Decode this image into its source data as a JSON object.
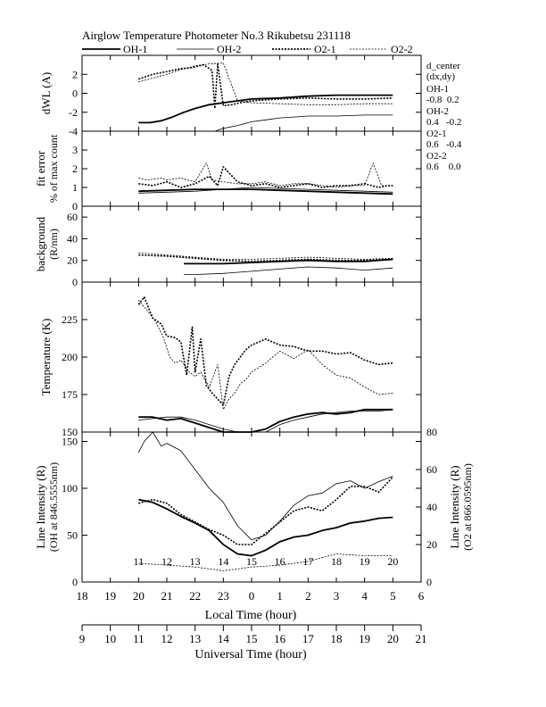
{
  "header": {
    "title": "Airglow Temperature Photometer No.3  Rikubetsu    231118",
    "legend": [
      {
        "label": "OH-1",
        "style": "solid-thick"
      },
      {
        "label": "OH-2",
        "style": "solid-thin"
      },
      {
        "label": "O2-1",
        "style": "dotted-thick"
      },
      {
        "label": "O2-2",
        "style": "dotted-thin"
      }
    ]
  },
  "center_info": {
    "title_lines": [
      "d_center",
      "(dx,dy)"
    ],
    "entries": [
      {
        "name": "OH-1",
        "value": "-0.8  0.2"
      },
      {
        "name": "OH-2",
        "value": "0.4   -0.2"
      },
      {
        "name": "O2-1",
        "value": "0.6   -0.4"
      },
      {
        "name": "O2-2",
        "value": "0.6    0.0"
      }
    ]
  },
  "axes": {
    "local_label": "Local Time (hour)",
    "local_ticks": [
      "18",
      "19",
      "20",
      "21",
      "22",
      "23",
      "0",
      "1",
      "2",
      "3",
      "4",
      "5",
      "6"
    ],
    "ut_label": "Universal Time (hour)",
    "ut_ticks": [
      "9",
      "10",
      "11",
      "12",
      "13",
      "14",
      "15",
      "16",
      "17",
      "18",
      "19",
      "20",
      "21"
    ],
    "ut_inline_ticks": [
      "11",
      "12",
      "13",
      "14",
      "15",
      "16",
      "17",
      "18",
      "19",
      "20"
    ]
  },
  "chart_data": [
    {
      "type": "line",
      "panel": "dwl",
      "ylabel": "dWL (A)",
      "ylim": [
        -4,
        4
      ],
      "yticks": [
        "-4",
        "-2",
        "0",
        "2"
      ],
      "xlim": [
        18,
        30
      ],
      "series": [
        {
          "name": "OH-1",
          "x": [
            20,
            20.4,
            20.8,
            21.2,
            21.6,
            22,
            22.5,
            23,
            23.5,
            24,
            25,
            26,
            27,
            28,
            29
          ],
          "values": [
            -3.1,
            -3.1,
            -2.9,
            -2.5,
            -2.0,
            -1.6,
            -1.2,
            -1.0,
            -0.8,
            -0.6,
            -0.5,
            -0.3,
            -0.2,
            -0.2,
            -0.2
          ]
        },
        {
          "name": "OH-2",
          "x": [
            22.7,
            23,
            23.5,
            24,
            24.5,
            25,
            25.5,
            26,
            27,
            28,
            29
          ],
          "values": [
            -4,
            -3.7,
            -3.4,
            -3.0,
            -2.8,
            -2.6,
            -2.5,
            -2.4,
            -2.4,
            -2.3,
            -2.3
          ]
        },
        {
          "name": "O2-1",
          "x": [
            20,
            20.5,
            21,
            21.5,
            21.9,
            22.3,
            22.6,
            22.7,
            22.8,
            23,
            23.3,
            23.6,
            24,
            24.5,
            25,
            26,
            27,
            28,
            29
          ],
          "values": [
            1.5,
            2.0,
            2.3,
            2.6,
            2.7,
            3.0,
            2.4,
            -1.6,
            3.1,
            -1.3,
            -1.2,
            -1.0,
            -0.8,
            -0.7,
            -0.6,
            -0.5,
            -0.6,
            -0.6,
            -0.5
          ]
        },
        {
          "name": "O2-2",
          "x": [
            20,
            20.5,
            21,
            21.5,
            22,
            22.5,
            23,
            23.5,
            24,
            25,
            26,
            27,
            28,
            29
          ],
          "values": [
            1.2,
            1.6,
            2.0,
            2.5,
            2.9,
            3.1,
            3.2,
            -0.8,
            -1.0,
            -1.1,
            -1.2,
            -1.2,
            -1.1,
            -1.1
          ]
        }
      ]
    },
    {
      "type": "line",
      "panel": "fit_error",
      "ylabel": "fit error",
      "ylabel2": "% of max count",
      "ylim": [
        0,
        4
      ],
      "yticks": [
        "0",
        "1",
        "2",
        "3"
      ],
      "xlim": [
        18,
        30
      ],
      "series": [
        {
          "name": "OH-1",
          "x": [
            20,
            21,
            22,
            23,
            24,
            25,
            26,
            27,
            28,
            29
          ],
          "values": [
            0.8,
            0.85,
            0.9,
            0.9,
            0.9,
            0.85,
            0.8,
            0.75,
            0.7,
            0.65
          ]
        },
        {
          "name": "OH-2",
          "x": [
            20,
            21,
            22,
            23,
            24,
            25,
            26,
            27,
            28,
            29
          ],
          "values": [
            0.7,
            0.75,
            0.8,
            0.9,
            1.0,
            0.95,
            0.9,
            0.85,
            0.8,
            0.75
          ]
        },
        {
          "name": "O2-1",
          "x": [
            20,
            20.5,
            21,
            21.5,
            22,
            22.5,
            22.8,
            23,
            23.5,
            24,
            24.5,
            25,
            25.5,
            26,
            26.5,
            27,
            27.5,
            28,
            28.5,
            28.8,
            29
          ],
          "values": [
            1.2,
            1.1,
            1.3,
            1.0,
            1.2,
            1.6,
            1.1,
            2.1,
            1.3,
            1.1,
            1.2,
            1.0,
            1.1,
            1.2,
            1.0,
            1.1,
            1.1,
            1.2,
            1.0,
            1.1,
            1.1
          ]
        },
        {
          "name": "O2-2",
          "x": [
            20,
            20.3,
            20.8,
            21,
            21.5,
            22,
            22.4,
            22.6,
            23,
            23.5,
            24,
            24.5,
            25,
            25.5,
            26,
            26.5,
            27,
            27.5,
            28,
            28.3,
            28.6,
            29
          ],
          "values": [
            1.5,
            1.4,
            1.5,
            1.4,
            1.5,
            1.3,
            2.3,
            1.4,
            1.3,
            1.2,
            1.2,
            1.3,
            1.1,
            1.2,
            1.2,
            1.1,
            1.0,
            1.1,
            1.1,
            2.3,
            1.1,
            1.1
          ]
        }
      ]
    },
    {
      "type": "line",
      "panel": "background",
      "ylabel": "background",
      "ylabel2": "(R/nm)",
      "ylim": [
        0,
        70
      ],
      "yticks": [
        "0",
        "20",
        "40",
        "60"
      ],
      "xlim": [
        18,
        30
      ],
      "series": [
        {
          "name": "OH-1",
          "x": [
            21.6,
            22,
            23,
            24,
            25,
            26,
            27,
            28,
            29
          ],
          "values": [
            17,
            17,
            17,
            18,
            19,
            20,
            19,
            19,
            21
          ]
        },
        {
          "name": "OH-2",
          "x": [
            21.6,
            22,
            23,
            24,
            25,
            26,
            27,
            28,
            29
          ],
          "values": [
            7,
            7,
            8,
            10,
            12,
            14,
            13,
            11,
            13
          ]
        },
        {
          "name": "O2-1",
          "x": [
            20,
            21,
            22,
            23,
            24,
            25,
            26,
            27,
            28,
            29
          ],
          "values": [
            25,
            24,
            22,
            20,
            19,
            20,
            21,
            20,
            20,
            21
          ]
        },
        {
          "name": "O2-2",
          "x": [
            20,
            20.5,
            21,
            22,
            23,
            24,
            25,
            26,
            27,
            28,
            29
          ],
          "values": [
            27,
            26,
            25,
            23,
            21,
            21,
            22,
            23,
            22,
            21,
            22
          ]
        }
      ]
    },
    {
      "type": "line",
      "panel": "temperature",
      "ylabel": "Temperature (K)",
      "ylim": [
        150,
        250
      ],
      "yticks": [
        "150",
        "175",
        "200",
        "225"
      ],
      "xlim": [
        18,
        30
      ],
      "series": [
        {
          "name": "OH-1",
          "x": [
            20,
            20.5,
            21,
            21.5,
            22,
            22.5,
            23,
            23.5,
            24,
            24.5,
            25,
            25.5,
            26,
            26.5,
            27,
            27.5,
            28,
            28.5,
            29
          ],
          "values": [
            160,
            160,
            158,
            159,
            156,
            153,
            150,
            149,
            147,
            152,
            157,
            160,
            162,
            163,
            162,
            163,
            165,
            165,
            165
          ]
        },
        {
          "name": "OH-2",
          "x": [
            20,
            20.5,
            21,
            21.5,
            22,
            22.5,
            23,
            23.5,
            24,
            24.5,
            25,
            25.5,
            26,
            26.5,
            27,
            27.5,
            28,
            28.5,
            29
          ],
          "values": [
            158,
            159,
            160,
            160,
            158,
            155,
            152,
            149,
            148,
            150,
            155,
            158,
            160,
            162,
            163,
            164,
            164,
            164,
            165
          ]
        },
        {
          "name": "O2-1",
          "x": [
            20,
            20.2,
            20.5,
            20.8,
            21,
            21.3,
            21.5,
            21.7,
            21.9,
            22,
            22.2,
            22.4,
            22.6,
            22.8,
            23,
            23.2,
            23.4,
            23.6,
            23.8,
            24,
            24.5,
            25,
            25.5,
            26,
            26.5,
            27,
            27.5,
            28,
            28.5,
            29
          ],
          "values": [
            235,
            240,
            226,
            222,
            214,
            213,
            210,
            188,
            220,
            190,
            212,
            181,
            176,
            172,
            168,
            187,
            195,
            200,
            205,
            208,
            212,
            208,
            207,
            204,
            204,
            202,
            203,
            198,
            195,
            196
          ]
        },
        {
          "name": "O2-2",
          "x": [
            20,
            20.3,
            20.6,
            20.9,
            21.1,
            21.3,
            21.5,
            21.8,
            22,
            22.2,
            22.5,
            22.8,
            23,
            23.2,
            23.4,
            23.6,
            23.8,
            24,
            24.5,
            25,
            25.5,
            26,
            26.5,
            27,
            27.5,
            28,
            28.5,
            29
          ],
          "values": [
            238,
            231,
            224,
            212,
            200,
            196,
            198,
            190,
            187,
            190,
            180,
            195,
            165,
            172,
            176,
            182,
            185,
            190,
            196,
            204,
            199,
            205,
            195,
            188,
            186,
            180,
            175,
            176
          ]
        }
      ]
    },
    {
      "type": "line",
      "panel": "line_intensity",
      "ylabel": "Line Intensity (R)",
      "ylabel2": "(OH at 846.5555nm)",
      "yrlabel": "Line Intensity (R)",
      "yrlabel2": "(O2 at 866.0595nm)",
      "ylim": [
        0,
        160
      ],
      "yticks": [
        "0",
        "50",
        "100",
        "150"
      ],
      "y2lim": [
        0,
        80
      ],
      "y2ticks": [
        "0",
        "20",
        "40",
        "60",
        "80"
      ],
      "xlim": [
        18,
        30
      ],
      "series": [
        {
          "name": "OH-1",
          "axis": "left",
          "x": [
            20,
            20.5,
            21,
            21.5,
            22,
            22.5,
            23,
            23.5,
            24,
            24.5,
            25,
            25.5,
            26,
            26.5,
            27,
            27.5,
            28,
            28.5,
            29
          ],
          "values": [
            88,
            85,
            78,
            70,
            63,
            55,
            40,
            30,
            28,
            34,
            43,
            48,
            50,
            55,
            58,
            63,
            65,
            68,
            69
          ]
        },
        {
          "name": "OH-2",
          "axis": "left",
          "x": [
            20,
            20.2,
            20.5,
            20.8,
            21,
            21.5,
            22,
            22.5,
            23,
            23.5,
            24,
            24.5,
            25,
            25.5,
            26,
            26.5,
            27,
            27.5,
            28,
            28.5,
            29
          ],
          "values": [
            138,
            150,
            160,
            145,
            148,
            140,
            120,
            100,
            85,
            60,
            45,
            50,
            65,
            82,
            92,
            95,
            105,
            108,
            100,
            107,
            113
          ]
        },
        {
          "name": "O2-1",
          "axis": "right",
          "x": [
            20,
            20.5,
            21,
            21.5,
            22,
            22.5,
            23,
            23.5,
            24,
            24.5,
            25,
            25.5,
            26,
            26.5,
            27,
            27.5,
            28,
            28.5,
            29
          ],
          "values": [
            42,
            44,
            42,
            36,
            32,
            28,
            25,
            20,
            20,
            26,
            32,
            38,
            40,
            38,
            44,
            51,
            51,
            48,
            56
          ]
        },
        {
          "name": "O2-2",
          "axis": "right",
          "x": [
            20,
            21,
            22,
            23,
            24,
            25,
            26,
            27,
            28,
            29
          ],
          "values": [
            10,
            9,
            8,
            6,
            8,
            9,
            11,
            15,
            14,
            14
          ]
        }
      ]
    }
  ]
}
